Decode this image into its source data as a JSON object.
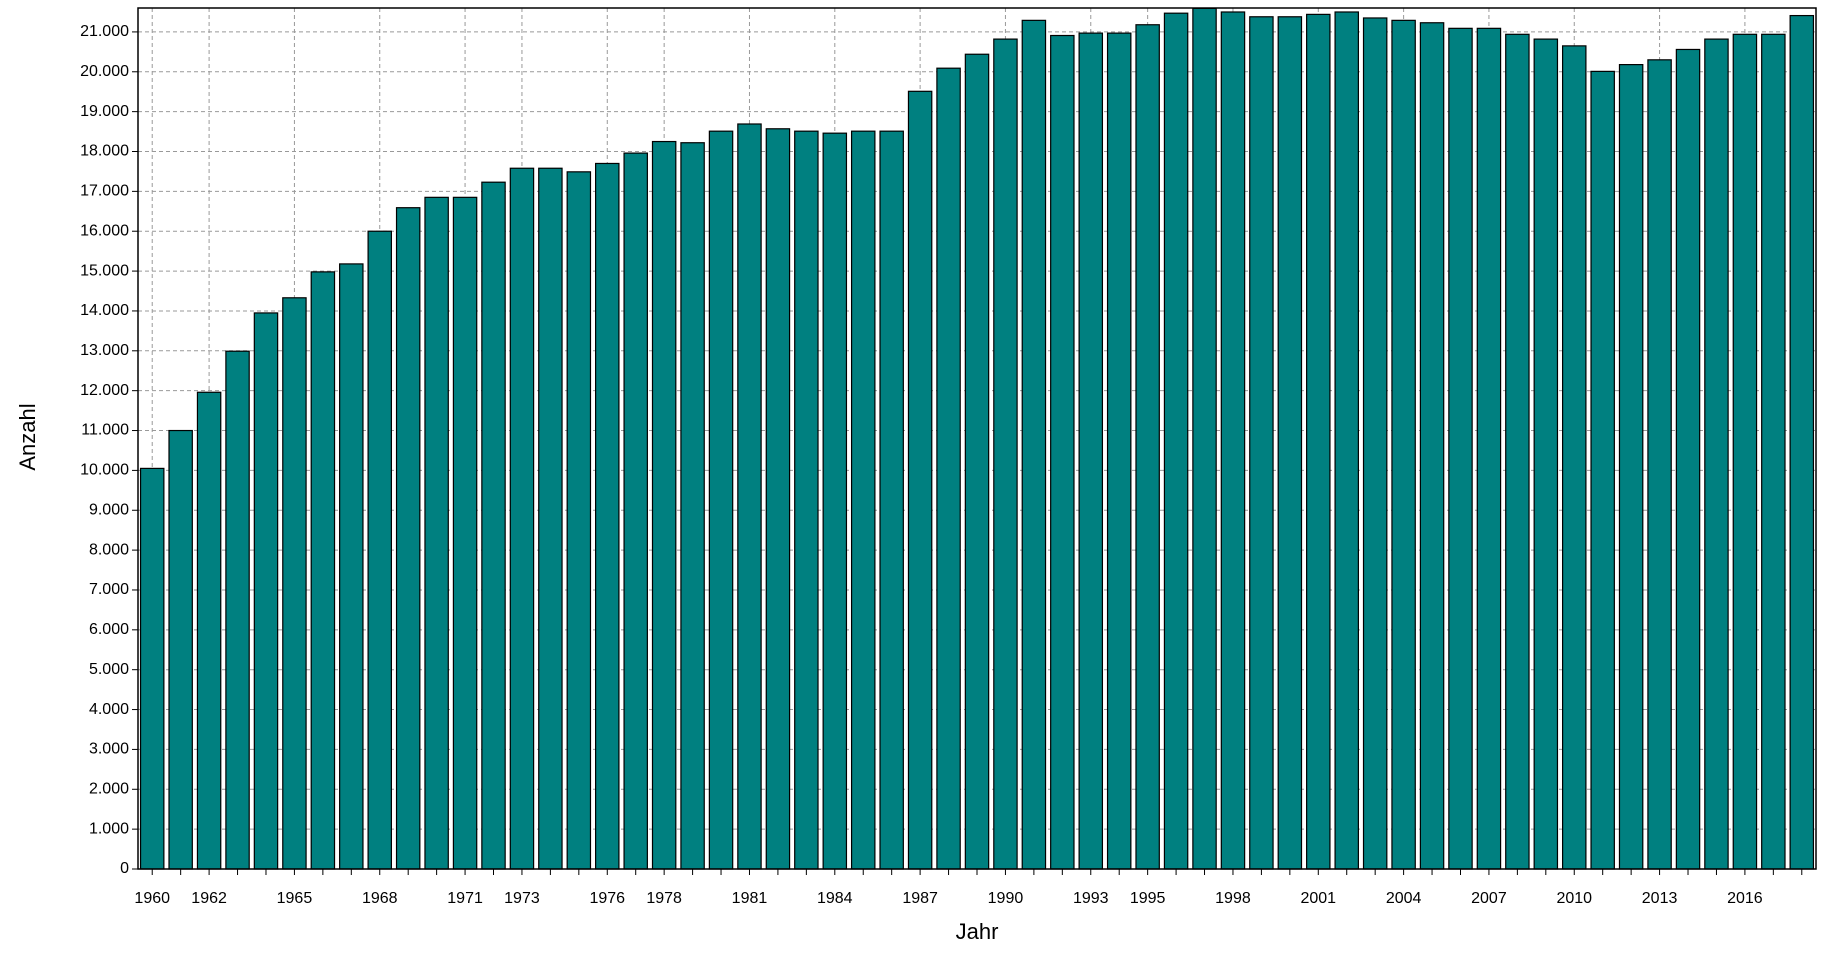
{
  "chart_data": {
    "type": "bar",
    "x_label": "Jahr",
    "y_label": "Anzahl",
    "categories": [
      "1960",
      null,
      "1962",
      null,
      null,
      "1965",
      null,
      null,
      "1968",
      null,
      null,
      "1971",
      null,
      "1973",
      null,
      null,
      "1976",
      null,
      "1978",
      null,
      null,
      "1981",
      null,
      null,
      "1984",
      null,
      null,
      "1987",
      null,
      null,
      "1990",
      null,
      null,
      "1993",
      null,
      "1995",
      null,
      null,
      "1998",
      null,
      null,
      "2001",
      null,
      null,
      "2004",
      null,
      null,
      "2007",
      null,
      null,
      "2010",
      null,
      null,
      "2013",
      null,
      null,
      "2016",
      null,
      null
    ],
    "values": [
      10050,
      11000,
      11960,
      12990,
      13950,
      14330,
      14980,
      15180,
      16000,
      16590,
      16850,
      16850,
      17230,
      17580,
      17580,
      17490,
      17700,
      17960,
      18250,
      18220,
      18510,
      18690,
      18570,
      18510,
      18460,
      18510,
      18510,
      19510,
      20090,
      20440,
      20820,
      21290,
      20910,
      20970,
      20970,
      21180,
      21470,
      21590,
      21500,
      21380,
      21380,
      21440,
      21500,
      21350,
      21290,
      21230,
      21090,
      21090,
      20940,
      20820,
      20650,
      20010,
      20180,
      20300,
      20560,
      20820,
      20940,
      20940,
      21410
    ],
    "color": "#008080",
    "ylim": [
      0,
      21600
    ],
    "yticks": [
      0,
      {
        "value": 1000,
        "label": "1.000"
      },
      {
        "value": 2000,
        "label": "2.000"
      },
      {
        "value": 3000,
        "label": "3.000"
      },
      {
        "value": 4000,
        "label": "4.000"
      },
      {
        "value": 5000,
        "label": "5.000"
      },
      {
        "value": 6000,
        "label": "6.000"
      },
      {
        "value": 7000,
        "label": "7.000"
      },
      {
        "value": 8000,
        "label": "8.000"
      },
      {
        "value": 9000,
        "label": "9.000"
      },
      {
        "value": 10000,
        "label": "10.000"
      },
      {
        "value": 11000,
        "label": "11.000"
      },
      {
        "value": 12000,
        "label": "12.000"
      },
      {
        "value": 13000,
        "label": "13.000"
      },
      {
        "value": 14000,
        "label": "14.000"
      },
      {
        "value": 15000,
        "label": "15.000"
      },
      {
        "value": 16000,
        "label": "16.000"
      },
      {
        "value": 17000,
        "label": "17.000"
      },
      {
        "value": 18000,
        "label": "18.000"
      },
      {
        "value": 19000,
        "label": "19.000"
      },
      {
        "value": 20000,
        "label": "20.000"
      },
      {
        "value": 21000,
        "label": "21.000"
      }
    ],
    "grid": true
  }
}
